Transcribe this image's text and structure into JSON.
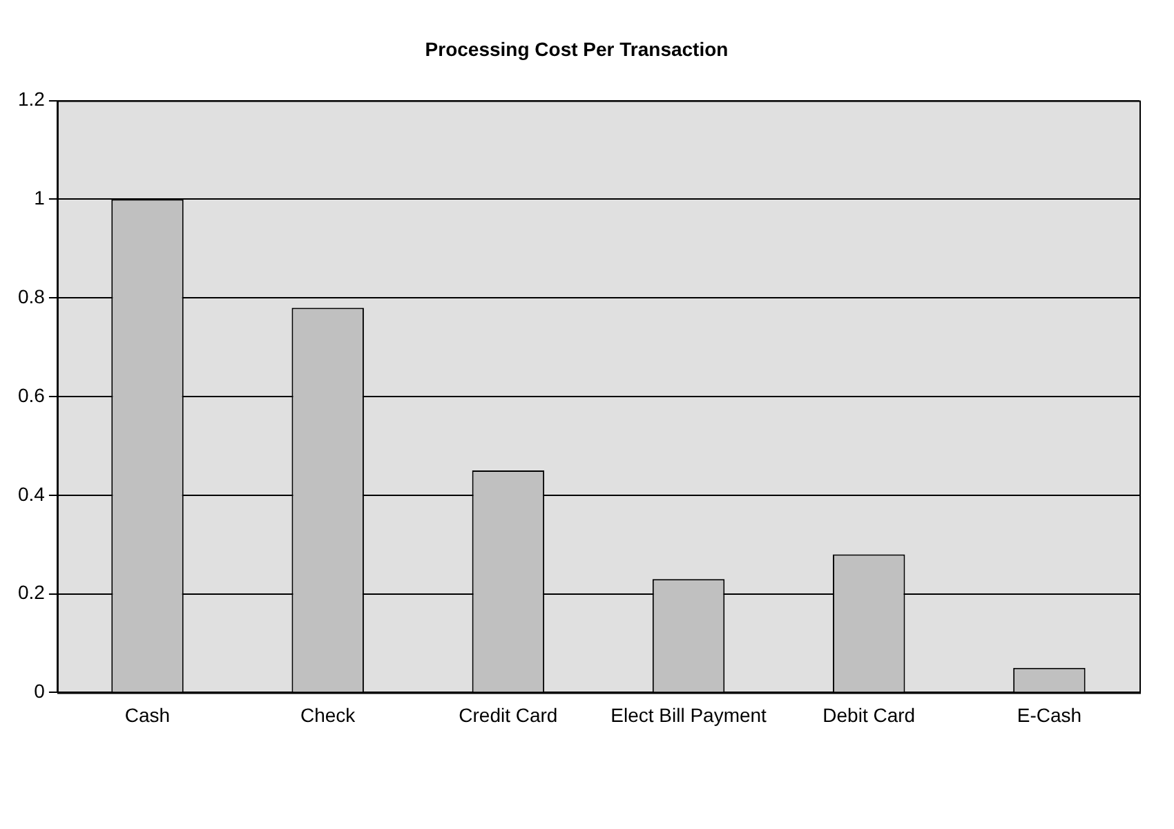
{
  "chart_data": {
    "type": "bar",
    "title": "Processing Cost Per Transaction",
    "categories": [
      "Cash",
      "Check",
      "Credit Card",
      "Elect Bill Payment",
      "Debit Card",
      "E-Cash"
    ],
    "values": [
      1.0,
      0.78,
      0.45,
      0.23,
      0.28,
      0.05
    ],
    "color": "#c0c0c0",
    "ylim": [
      0,
      1.2
    ],
    "yticks": [
      0,
      0.2,
      0.4,
      0.6,
      0.8,
      1,
      1.2
    ],
    "grid": "y",
    "legend": false
  }
}
